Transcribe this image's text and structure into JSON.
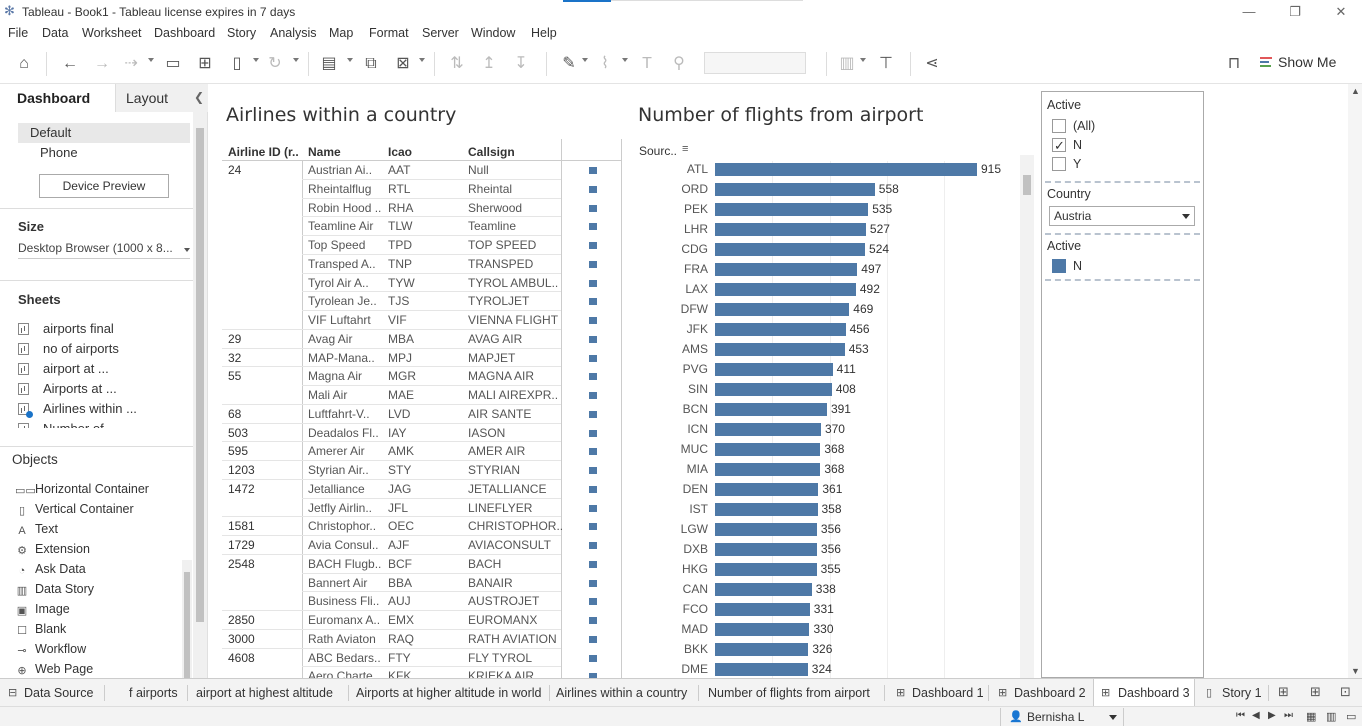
{
  "window": {
    "title": "Tableau - Book1 - Tableau license expires in 7 days"
  },
  "menu": [
    "File",
    "Data",
    "Worksheet",
    "Dashboard",
    "Story",
    "Analysis",
    "Map",
    "Format",
    "Server",
    "Window",
    "Help"
  ],
  "toolbar": {
    "show_me_label": "Show Me"
  },
  "left_panel": {
    "tabs": {
      "dashboard": "Dashboard",
      "layout": "Layout"
    },
    "devices": [
      "Default",
      "Phone"
    ],
    "device_preview_label": "Device Preview",
    "size_title": "Size",
    "size_value": "Desktop Browser (1000 x 8...",
    "sheets_title": "Sheets",
    "sheets": [
      "airports final",
      "no of airports",
      "airport at ...",
      "Airports at ...",
      "Airlines within ...",
      "Number of ..."
    ],
    "objects_title": "Objects",
    "objects": [
      {
        "icon": "horizontal-container-icon",
        "glyph": "▭▭",
        "label": "Horizontal Container"
      },
      {
        "icon": "vertical-container-icon",
        "glyph": "▯",
        "label": "Vertical Container"
      },
      {
        "icon": "text-icon",
        "glyph": "A",
        "label": "Text"
      },
      {
        "icon": "extension-icon",
        "glyph": "⚙",
        "label": "Extension"
      },
      {
        "icon": "ask-data-icon",
        "glyph": "◔",
        "label": "Ask Data"
      },
      {
        "icon": "data-story-icon",
        "glyph": "▥",
        "label": "Data Story"
      },
      {
        "icon": "image-icon",
        "glyph": "▣",
        "label": "Image"
      },
      {
        "icon": "blank-icon",
        "glyph": "☐",
        "label": "Blank"
      },
      {
        "icon": "workflow-icon",
        "glyph": "⊸",
        "label": "Workflow"
      },
      {
        "icon": "web-page-icon",
        "glyph": "⊕",
        "label": "Web Page"
      }
    ]
  },
  "table": {
    "title": "Airlines within a country",
    "headers": [
      "Airline ID (r..",
      "Name",
      "Icao",
      "Callsign"
    ],
    "rows": [
      {
        "id": "24",
        "name": "Austrian Ai..",
        "icao": "AAT",
        "callsign": "Null"
      },
      {
        "id": "",
        "name": "Rheintalflug",
        "icao": "RTL",
        "callsign": "Rheintal"
      },
      {
        "id": "",
        "name": "Robin Hood ..",
        "icao": "RHA",
        "callsign": "Sherwood"
      },
      {
        "id": "",
        "name": "Teamline Air",
        "icao": "TLW",
        "callsign": "Teamline"
      },
      {
        "id": "",
        "name": "Top Speed",
        "icao": "TPD",
        "callsign": "TOP SPEED"
      },
      {
        "id": "",
        "name": "Transped A..",
        "icao": "TNP",
        "callsign": "TRANSPED"
      },
      {
        "id": "",
        "name": "Tyrol Air A..",
        "icao": "TYW",
        "callsign": "TYROL AMBUL.."
      },
      {
        "id": "",
        "name": "Tyrolean Je..",
        "icao": "TJS",
        "callsign": "TYROLJET"
      },
      {
        "id": "",
        "name": "VIF Luftahrt",
        "icao": "VIF",
        "callsign": "VIENNA FLIGHT"
      },
      {
        "id": "29",
        "name": "Avag Air",
        "icao": "MBA",
        "callsign": "AVAG AIR"
      },
      {
        "id": "32",
        "name": "MAP-Mana..",
        "icao": "MPJ",
        "callsign": "MAPJET"
      },
      {
        "id": "55",
        "name": "Magna Air",
        "icao": "MGR",
        "callsign": "MAGNA AIR"
      },
      {
        "id": "",
        "name": "Mali Air",
        "icao": "MAE",
        "callsign": "MALI AIREXPR.."
      },
      {
        "id": "68",
        "name": "Luftfahrt-V..",
        "icao": "LVD",
        "callsign": "AIR SANTE"
      },
      {
        "id": "503",
        "name": "Deadalos Fl..",
        "icao": "IAY",
        "callsign": "IASON"
      },
      {
        "id": "595",
        "name": "Amerer Air",
        "icao": "AMK",
        "callsign": "AMER AIR"
      },
      {
        "id": "1203",
        "name": "Styrian Air..",
        "icao": "STY",
        "callsign": "STYRIAN"
      },
      {
        "id": "1472",
        "name": "Jetalliance",
        "icao": "JAG",
        "callsign": "JETALLIANCE"
      },
      {
        "id": "",
        "name": "Jetfly Airlin..",
        "icao": "JFL",
        "callsign": "LINEFLYER"
      },
      {
        "id": "1581",
        "name": "Christophor..",
        "icao": "OEC",
        "callsign": "CHRISTOPHOR.."
      },
      {
        "id": "1729",
        "name": "Avia Consul..",
        "icao": "AJF",
        "callsign": "AVIACONSULT"
      },
      {
        "id": "2548",
        "name": "BACH Flugb..",
        "icao": "BCF",
        "callsign": "BACH"
      },
      {
        "id": "",
        "name": "Bannert Air",
        "icao": "BBA",
        "callsign": "BANAIR"
      },
      {
        "id": "",
        "name": "Business Fli..",
        "icao": "AUJ",
        "callsign": "AUSTROJET"
      },
      {
        "id": "2850",
        "name": "Euromanx A..",
        "icao": "EMX",
        "callsign": "EUROMANX"
      },
      {
        "id": "3000",
        "name": "Rath Aviaton",
        "icao": "RAQ",
        "callsign": "RATH AVIATION"
      },
      {
        "id": "4608",
        "name": "ABC Bedars..",
        "icao": "FTY",
        "callsign": "FLY TYROL"
      },
      {
        "id": "",
        "name": "Aero Charte..",
        "icao": "KFK",
        "callsign": "KRIEKA AIR"
      }
    ]
  },
  "chart_data": {
    "type": "bar",
    "title": "Number of flights from airport",
    "xlabel": "",
    "ylabel": "Sourc..",
    "orientation": "horizontal",
    "categories": [
      "ATL",
      "ORD",
      "PEK",
      "LHR",
      "CDG",
      "FRA",
      "LAX",
      "DFW",
      "JFK",
      "AMS",
      "PVG",
      "SIN",
      "BCN",
      "ICN",
      "MUC",
      "MIA",
      "DEN",
      "IST",
      "LGW",
      "DXB",
      "HKG",
      "CAN",
      "FCO",
      "MAD",
      "BKK",
      "DME"
    ],
    "values": [
      915,
      558,
      535,
      527,
      524,
      497,
      492,
      469,
      456,
      453,
      411,
      408,
      391,
      370,
      368,
      368,
      361,
      358,
      356,
      356,
      355,
      338,
      331,
      330,
      326,
      324
    ],
    "xlim": [
      0,
      1000
    ],
    "color": "#4e79a7"
  },
  "filters": {
    "active_title": "Active",
    "active_options": [
      {
        "label": "(All)",
        "checked": false
      },
      {
        "label": "N",
        "checked": true
      },
      {
        "label": "Y",
        "checked": false
      }
    ],
    "country_title": "Country",
    "country_value": "Austria",
    "legend_title": "Active",
    "legend_items": [
      {
        "label": "N",
        "color": "#4e79a7"
      }
    ]
  },
  "bottom_tabs": [
    {
      "label": "Data Source",
      "type": "datasource"
    },
    {
      "label": "f airports",
      "type": "sheet"
    },
    {
      "label": "airport at highest altitude",
      "type": "sheet"
    },
    {
      "label": "Airports at higher altitude in world",
      "type": "sheet"
    },
    {
      "label": "Airlines within a country",
      "type": "sheet"
    },
    {
      "label": "Number of flights from airport",
      "type": "sheet"
    },
    {
      "label": "Dashboard 1",
      "type": "dashboard"
    },
    {
      "label": "Dashboard 2",
      "type": "dashboard"
    },
    {
      "label": "Dashboard 3",
      "type": "dashboard",
      "active": true
    },
    {
      "label": "Story 1",
      "type": "story"
    }
  ],
  "status": {
    "user": "Bernisha L"
  }
}
